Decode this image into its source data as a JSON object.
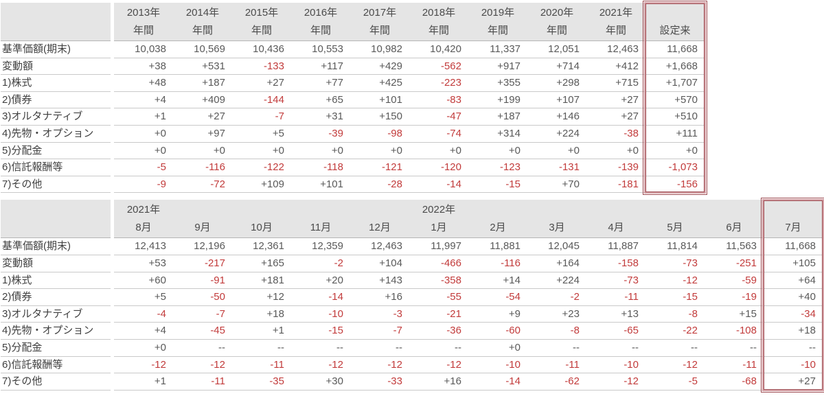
{
  "colors": {
    "header_bg": "#e5e5e5",
    "row_line": "#c9c9c9",
    "header_line": "#b5b5b5",
    "text": "#595959",
    "label_text": "#404040",
    "negative": "#c23b3b",
    "hl": "#9f4f55",
    "hl_light": "#d4a0a5"
  },
  "yearly_table": {
    "corner": "",
    "highlight_box_name": "highlight-box-since-inception",
    "columns": [
      {
        "top": "2013年",
        "bottom": "年間"
      },
      {
        "top": "2014年",
        "bottom": "年間"
      },
      {
        "top": "2015年",
        "bottom": "年間"
      },
      {
        "top": "2016年",
        "bottom": "年間"
      },
      {
        "top": "2017年",
        "bottom": "年間"
      },
      {
        "top": "2018年",
        "bottom": "年間"
      },
      {
        "top": "2019年",
        "bottom": "年間"
      },
      {
        "top": "2020年",
        "bottom": "年間"
      },
      {
        "top": "2021年",
        "bottom": "年間"
      },
      {
        "top": "",
        "bottom": "設定来",
        "highlight": true
      }
    ],
    "rows": [
      {
        "label": "基準価額(期末)",
        "values": [
          "10,038",
          "10,569",
          "10,436",
          "10,553",
          "10,982",
          "10,420",
          "11,337",
          "12,051",
          "12,463",
          "11,668"
        ]
      },
      {
        "label": "変動額",
        "values": [
          "+38",
          "+531",
          "-133",
          "+117",
          "+429",
          "-562",
          "+917",
          "+714",
          "+412",
          "+1,668"
        ]
      },
      {
        "label": "1)株式",
        "values": [
          "+48",
          "+187",
          "+27",
          "+77",
          "+425",
          "-223",
          "+355",
          "+298",
          "+715",
          "+1,707"
        ]
      },
      {
        "label": "2)債券",
        "values": [
          "+4",
          "+409",
          "-144",
          "+65",
          "+101",
          "-83",
          "+199",
          "+107",
          "+27",
          "+570"
        ]
      },
      {
        "label": "3)オルタナティブ",
        "values": [
          "+1",
          "+27",
          "-7",
          "+31",
          "+150",
          "-47",
          "+187",
          "+146",
          "+27",
          "+510"
        ]
      },
      {
        "label": "4)先物・オプション",
        "values": [
          "+0",
          "+97",
          "+5",
          "-39",
          "-98",
          "-74",
          "+314",
          "+224",
          "-38",
          "+111"
        ]
      },
      {
        "label": "5)分配金",
        "values": [
          "+0",
          "+0",
          "+0",
          "+0",
          "+0",
          "+0",
          "+0",
          "+0",
          "+0",
          "+0"
        ]
      },
      {
        "label": "6)信託報酬等",
        "values": [
          "-5",
          "-116",
          "-122",
          "-118",
          "-121",
          "-120",
          "-123",
          "-131",
          "-139",
          "-1,073"
        ]
      },
      {
        "label": "7)その他",
        "values": [
          "-9",
          "-72",
          "+109",
          "+101",
          "-28",
          "-14",
          "-15",
          "+70",
          "-181",
          "-156"
        ]
      }
    ]
  },
  "monthly_table": {
    "corner": "",
    "highlight_box_name": "highlight-box-latest-month",
    "columns": [
      {
        "top": "2021年",
        "bottom": "8月"
      },
      {
        "top": "",
        "bottom": "9月"
      },
      {
        "top": "",
        "bottom": "10月"
      },
      {
        "top": "",
        "bottom": "11月"
      },
      {
        "top": "",
        "bottom": "12月"
      },
      {
        "top": "2022年",
        "bottom": "1月"
      },
      {
        "top": "",
        "bottom": "2月"
      },
      {
        "top": "",
        "bottom": "3月"
      },
      {
        "top": "",
        "bottom": "4月"
      },
      {
        "top": "",
        "bottom": "5月"
      },
      {
        "top": "",
        "bottom": "6月"
      },
      {
        "top": "",
        "bottom": "7月",
        "highlight": true
      }
    ],
    "rows": [
      {
        "label": "基準価額(期末)",
        "values": [
          "12,413",
          "12,196",
          "12,361",
          "12,359",
          "12,463",
          "11,997",
          "11,881",
          "12,045",
          "11,887",
          "11,814",
          "11,563",
          "11,668"
        ]
      },
      {
        "label": "変動額",
        "values": [
          "+53",
          "-217",
          "+165",
          "-2",
          "+104",
          "-466",
          "-116",
          "+164",
          "-158",
          "-73",
          "-251",
          "+105"
        ]
      },
      {
        "label": "1)株式",
        "values": [
          "+60",
          "-91",
          "+181",
          "+20",
          "+143",
          "-358",
          "+14",
          "+224",
          "-73",
          "-12",
          "-59",
          "+64"
        ]
      },
      {
        "label": "2)債券",
        "values": [
          "+5",
          "-50",
          "+12",
          "-14",
          "+16",
          "-55",
          "-54",
          "-2",
          "-11",
          "-15",
          "-19",
          "+40"
        ]
      },
      {
        "label": "3)オルタナティブ",
        "values": [
          "-4",
          "-7",
          "+18",
          "-10",
          "-3",
          "-21",
          "+9",
          "+23",
          "+13",
          "-8",
          "+15",
          "-34"
        ]
      },
      {
        "label": "4)先物・オプション",
        "values": [
          "+4",
          "-45",
          "+1",
          "-15",
          "-7",
          "-36",
          "-60",
          "-8",
          "-65",
          "-22",
          "-108",
          "+18"
        ]
      },
      {
        "label": "5)分配金",
        "values": [
          "+0",
          "--",
          "--",
          "--",
          "--",
          "--",
          "+0",
          "--",
          "--",
          "--",
          "--",
          "--"
        ]
      },
      {
        "label": "6)信託報酬等",
        "values": [
          "-12",
          "-12",
          "-11",
          "-12",
          "-12",
          "-12",
          "-10",
          "-11",
          "-10",
          "-12",
          "-11",
          "-10"
        ]
      },
      {
        "label": "7)その他",
        "values": [
          "+1",
          "-11",
          "-35",
          "+30",
          "-33",
          "+16",
          "-14",
          "-62",
          "-12",
          "-5",
          "-68",
          "+27"
        ]
      }
    ]
  }
}
